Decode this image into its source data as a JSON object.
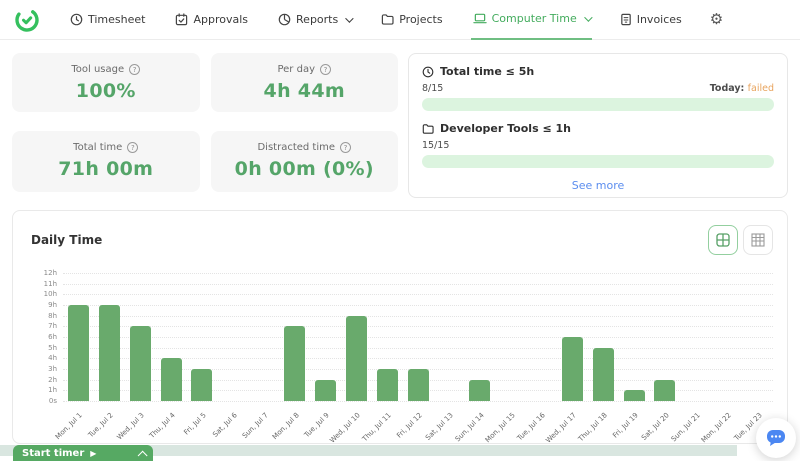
{
  "nav": {
    "items": [
      {
        "label": "Timesheet",
        "icon": "clock-icon",
        "dropdown": false,
        "active": false
      },
      {
        "label": "Approvals",
        "icon": "calendar-check-icon",
        "dropdown": false,
        "active": false
      },
      {
        "label": "Reports",
        "icon": "pie-chart-icon",
        "dropdown": true,
        "active": false
      },
      {
        "label": "Projects",
        "icon": "folder-icon",
        "dropdown": false,
        "active": false
      },
      {
        "label": "Computer Time",
        "icon": "laptop-icon",
        "dropdown": true,
        "active": true
      },
      {
        "label": "Invoices",
        "icon": "invoice-icon",
        "dropdown": false,
        "active": false
      }
    ],
    "right_icons": [
      "gear-icon",
      "help-icon",
      "avatar",
      "chevron-down-icon"
    ],
    "gear_glyph": "⚙",
    "help_glyph": "?"
  },
  "stats": [
    {
      "label": "Tool usage",
      "value": "100%"
    },
    {
      "label": "Per day",
      "value": "4h 44m"
    },
    {
      "label": "Total time",
      "value": "71h 00m"
    },
    {
      "label": "Distracted time",
      "value": "0h 00m (0%)"
    }
  ],
  "goals": {
    "items": [
      {
        "icon": "clock-icon",
        "title": "Total time ≤ 5h",
        "count": "8/15",
        "today_label": "Today:",
        "today_status": "failed",
        "progress_percent": 100
      },
      {
        "icon": "folder-icon",
        "title": "Developer Tools ≤ 1h",
        "count": "15/15",
        "today_label": "",
        "today_status": "",
        "progress_percent": 100
      }
    ],
    "see_more": "See more"
  },
  "chart_data": {
    "type": "bar",
    "title": "Daily Time",
    "categories": [
      "Mon, Jul 1",
      "Tue, Jul 2",
      "Wed, Jul 3",
      "Thu, Jul 4",
      "Fri, Jul 5",
      "Sat, Jul 6",
      "Sun, Jul 7",
      "Mon, Jul 8",
      "Tue, Jul 9",
      "Wed, Jul 10",
      "Thu, Jul 11",
      "Fri, Jul 12",
      "Sat, Jul 13",
      "Sun, Jul 14",
      "Mon, Jul 15",
      "Tue, Jul 16",
      "Wed, Jul 17",
      "Thu, Jul 18",
      "Fri, Jul 19",
      "Sat, Jul 20",
      "Sun, Jul 21",
      "Mon, Jul 22",
      "Tue, Jul 23"
    ],
    "values_hours": [
      9,
      9,
      7,
      4,
      3,
      0,
      0,
      7,
      2,
      8,
      3,
      3,
      0,
      2,
      0,
      0,
      6,
      5,
      1,
      2,
      0,
      0,
      0
    ],
    "y_ticks": [
      "12h",
      "11h",
      "10h",
      "9h",
      "8h",
      "7h",
      "6h",
      "5h",
      "4h",
      "3h",
      "2h",
      "1h",
      "0s"
    ],
    "ylim": [
      0,
      12
    ],
    "xlabel": "",
    "ylabel": "",
    "grid": "dotted-horizontal",
    "legend": "none",
    "bar_color": "#69aa6c"
  },
  "timer": {
    "label": "Start timer",
    "play_glyph": "▶"
  },
  "colors": {
    "accent_green": "#55a569",
    "nav_active_green": "#44ac5e",
    "logo_green": "#35c05e",
    "bar_green": "#69aa6c",
    "progress_light_green": "#dcf4df",
    "link_blue": "#5b8def",
    "failed_orange": "#e8a45e",
    "card_gray": "#f6f6f6",
    "chat_blue": "#4b87f2",
    "scrollbar_track": "#d9e6e0"
  }
}
